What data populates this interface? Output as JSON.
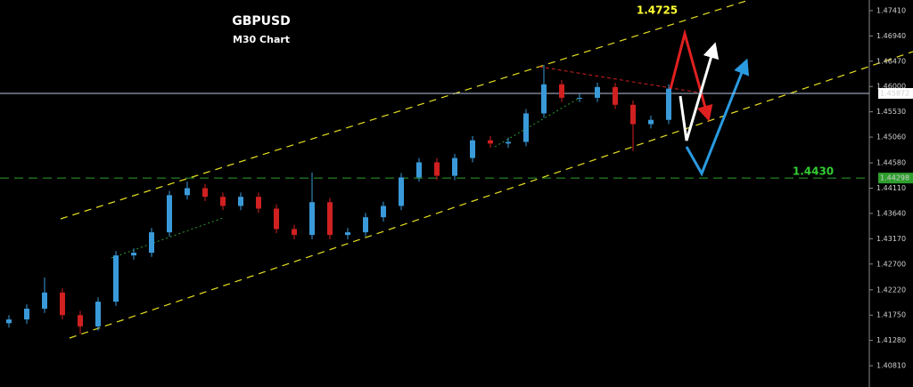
{
  "chart_data": {
    "type": "candlestick",
    "title": "GBPUSD",
    "subtitle": "M30 Chart",
    "up_color": "#3a9ad9",
    "down_color": "#d02020",
    "open": [
      1.416,
      1.4167,
      1.4187,
      1.4217,
      1.4175,
      1.4154,
      1.42,
      1.4286,
      1.4291,
      1.4329,
      1.4398,
      1.4411,
      1.4395,
      1.4378,
      1.4395,
      1.4373,
      1.4335,
      1.4324,
      1.4385,
      1.4324,
      1.4329,
      1.4357,
      1.4378,
      1.4431,
      1.4459,
      1.4434,
      1.4467,
      1.45,
      1.4494,
      1.4497,
      1.455,
      1.4604,
      1.4579,
      1.4579,
      1.4599,
      1.4566,
      1.453,
      1.4538
    ],
    "high": [
      1.4175,
      1.4195,
      1.4245,
      1.4225,
      1.4183,
      1.4208,
      1.4294,
      1.4299,
      1.4337,
      1.4406,
      1.4423,
      1.4419,
      1.4403,
      1.4403,
      1.4403,
      1.4381,
      1.4343,
      1.444,
      1.4393,
      1.4337,
      1.4365,
      1.4386,
      1.4439,
      1.4467,
      1.4467,
      1.4475,
      1.4508,
      1.4508,
      1.4505,
      1.4558,
      1.464,
      1.4612,
      1.4587,
      1.4607,
      1.4607,
      1.4574,
      1.4546,
      1.4604
    ],
    "low": [
      1.4152,
      1.4159,
      1.4179,
      1.4167,
      1.414,
      1.4146,
      1.4192,
      1.4278,
      1.4283,
      1.4321,
      1.439,
      1.4387,
      1.437,
      1.437,
      1.4365,
      1.4327,
      1.4316,
      1.4316,
      1.4316,
      1.4316,
      1.4321,
      1.4349,
      1.437,
      1.4423,
      1.4426,
      1.4426,
      1.4459,
      1.4486,
      1.4486,
      1.4489,
      1.4542,
      1.4571,
      1.4571,
      1.4571,
      1.4558,
      1.448,
      1.4522,
      1.453
    ],
    "close": [
      1.4167,
      1.4187,
      1.4217,
      1.4175,
      1.4154,
      1.42,
      1.4286,
      1.4291,
      1.4329,
      1.4398,
      1.4411,
      1.4395,
      1.4378,
      1.4395,
      1.4373,
      1.4335,
      1.4324,
      1.4385,
      1.4324,
      1.4329,
      1.4357,
      1.4378,
      1.4431,
      1.4459,
      1.4434,
      1.4467,
      1.45,
      1.4494,
      1.4497,
      1.455,
      1.4604,
      1.4579,
      1.4579,
      1.4599,
      1.4566,
      1.453,
      1.4538,
      1.4596
    ],
    "ylim": [
      1.40414,
      1.47608
    ],
    "yticks": [
      {
        "value": 1.4741,
        "label": "1.47410"
      },
      {
        "value": 1.4694,
        "label": "1.46940"
      },
      {
        "value": 1.4647,
        "label": "1.46470"
      },
      {
        "value": 1.46,
        "label": "1.46000"
      },
      {
        "value": 1.4553,
        "label": "1.45530"
      },
      {
        "value": 1.4506,
        "label": "1.45060"
      },
      {
        "value": 1.4458,
        "label": "1.44580"
      },
      {
        "value": 1.4411,
        "label": "1.44110"
      },
      {
        "value": 1.4364,
        "label": "1.43640"
      },
      {
        "value": 1.4317,
        "label": "1.43170"
      },
      {
        "value": 1.427,
        "label": "1.42700"
      },
      {
        "value": 1.4222,
        "label": "1.42220"
      },
      {
        "value": 1.4175,
        "label": "1.41750"
      },
      {
        "value": 1.4128,
        "label": "1.41280"
      },
      {
        "value": 1.4081,
        "label": "1.40810"
      }
    ],
    "price_lines": [
      {
        "value": 1.45872,
        "label": "1.45872",
        "color": "#b8c4dc"
      },
      {
        "value": 1.44298,
        "label": "1.44298",
        "color": "#2e9e2e"
      }
    ],
    "annotations": [
      {
        "text": "1.4725",
        "color": "#ffff33"
      },
      {
        "text": "1.4430",
        "color": "#33cc33"
      }
    ]
  }
}
